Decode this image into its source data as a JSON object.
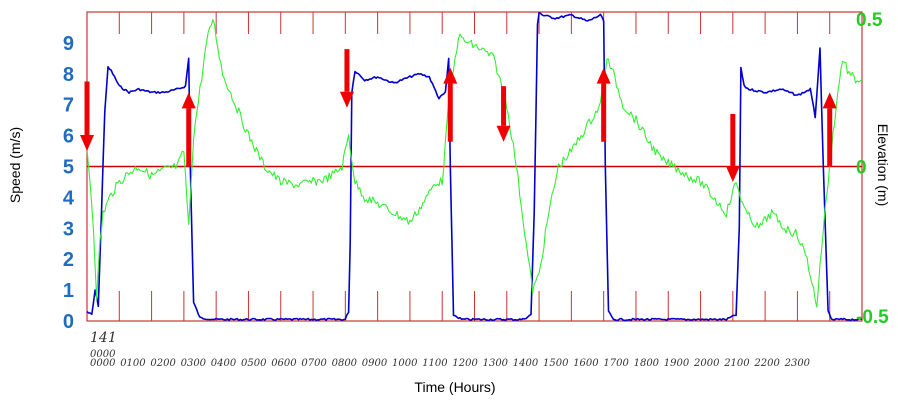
{
  "chart_data": {
    "type": "line",
    "xlabel": "Time (Hours)",
    "ylabel_left": "Speed  (m/s)",
    "ylabel_right": "Elevation  (m)",
    "x_axis": {
      "start_label": "141",
      "start_label_sub": "0000",
      "tick_labels": [
        "0000",
        "0100",
        "0200",
        "0300",
        "0400",
        "0500",
        "0600",
        "0700",
        "0800",
        "0900",
        "1000",
        "1100",
        "1200",
        "1300",
        "1400",
        "1500",
        "1600",
        "1700",
        "1800",
        "1900",
        "2000",
        "2100",
        "2200",
        "2300"
      ],
      "xlim": [
        0,
        24
      ]
    },
    "y_left": {
      "ylim": [
        0,
        10
      ],
      "tick_labels": [
        "0",
        "1",
        "2",
        "3",
        "4",
        "5",
        "6",
        "7",
        "8",
        "9"
      ],
      "color": "#1f6cc0"
    },
    "y_right": {
      "ylim": [
        -0.5,
        0.5
      ],
      "tick_labels": [
        "-0.5",
        "0",
        "0.5"
      ],
      "tick_values": [
        -0.5,
        0,
        0.5
      ],
      "color": "#22cc22"
    },
    "reference_line": {
      "axis": "right",
      "value": 0,
      "color": "#cc0000"
    },
    "frame_color": "#cc3333",
    "series": [
      {
        "axis": "left",
        "color": "#0000cc",
        "x": [
          0.0,
          0.15,
          0.25,
          0.35,
          0.45,
          0.55,
          0.65,
          0.75,
          0.85,
          1.0,
          1.3,
          1.6,
          2.0,
          2.4,
          2.8,
          3.05,
          3.15,
          3.2,
          3.3,
          3.5,
          4.0,
          5.0,
          6.0,
          7.0,
          7.8,
          8.0,
          8.1,
          8.15,
          8.2,
          8.3,
          8.6,
          9.0,
          9.5,
          10.0,
          10.3,
          10.6,
          10.9,
          11.1,
          11.2,
          11.25,
          11.35,
          11.6,
          12.0,
          12.5,
          13.0,
          13.5,
          13.75,
          13.85,
          13.95,
          14.0,
          14.1,
          14.5,
          15.0,
          15.5,
          15.9,
          16.0,
          16.05,
          16.15,
          16.3,
          17.0,
          18.0,
          19.0,
          19.8,
          20.1,
          20.2,
          20.25,
          20.35,
          20.5,
          21.0,
          21.5,
          22.0,
          22.4,
          22.55,
          22.7,
          22.8,
          22.95,
          23.05,
          23.2,
          23.5,
          24.0
        ],
        "y": [
          0.3,
          0.2,
          1.0,
          0.5,
          3.5,
          6.8,
          8.2,
          8.1,
          7.9,
          7.6,
          7.4,
          7.5,
          7.4,
          7.4,
          7.5,
          7.6,
          8.5,
          5.0,
          0.6,
          0.1,
          0.05,
          0.05,
          0.05,
          0.05,
          0.05,
          0.05,
          0.3,
          2.5,
          7.4,
          8.1,
          7.8,
          7.9,
          7.7,
          7.9,
          8.0,
          7.9,
          7.2,
          7.4,
          8.5,
          5.0,
          0.2,
          0.05,
          0.05,
          0.05,
          0.05,
          0.05,
          0.2,
          3.5,
          9.6,
          10.0,
          9.9,
          9.8,
          9.9,
          9.7,
          9.9,
          9.7,
          5.0,
          0.3,
          0.05,
          0.05,
          0.05,
          0.05,
          0.05,
          0.2,
          3.0,
          8.2,
          7.6,
          7.5,
          7.4,
          7.5,
          7.3,
          7.5,
          6.6,
          8.8,
          5.0,
          0.3,
          0.05,
          0.05,
          0.05,
          0.05
        ]
      },
      {
        "axis": "right",
        "color": "#33ee33",
        "x": [
          0.0,
          0.1,
          0.2,
          0.3,
          0.4,
          0.5,
          0.7,
          1.0,
          1.3,
          1.6,
          2.0,
          2.4,
          2.8,
          3.0,
          3.15,
          3.3,
          3.5,
          3.7,
          3.9,
          4.2,
          4.6,
          5.0,
          5.5,
          6.0,
          6.5,
          7.0,
          7.4,
          7.7,
          7.9,
          8.1,
          8.3,
          8.6,
          9.0,
          9.5,
          10.0,
          10.4,
          10.8,
          11.0,
          11.2,
          11.5,
          11.8,
          12.2,
          12.6,
          13.0,
          13.3,
          13.6,
          13.8,
          14.0,
          14.3,
          14.6,
          15.0,
          15.3,
          15.6,
          15.9,
          16.1,
          16.3,
          16.6,
          17.0,
          17.4,
          17.8,
          18.2,
          18.6,
          19.0,
          19.4,
          19.8,
          20.1,
          20.4,
          20.8,
          21.2,
          21.6,
          22.0,
          22.3,
          22.6,
          22.8,
          23.0,
          23.2,
          23.4,
          23.6,
          23.8,
          24.0
        ],
        "y": [
          0.05,
          -0.05,
          -0.2,
          -0.42,
          -0.25,
          -0.15,
          -0.1,
          -0.05,
          -0.02,
          0.0,
          -0.03,
          -0.01,
          0.0,
          0.05,
          -0.2,
          0.1,
          0.25,
          0.4,
          0.48,
          0.3,
          0.2,
          0.1,
          0.0,
          -0.05,
          -0.06,
          -0.05,
          -0.04,
          -0.02,
          0.0,
          0.1,
          -0.05,
          -0.1,
          -0.12,
          -0.15,
          -0.18,
          -0.12,
          -0.05,
          -0.05,
          0.2,
          0.42,
          0.4,
          0.38,
          0.35,
          0.2,
          0.0,
          -0.25,
          -0.4,
          -0.35,
          -0.15,
          0.0,
          0.05,
          0.1,
          0.15,
          0.2,
          0.35,
          0.3,
          0.2,
          0.15,
          0.08,
          0.02,
          0.0,
          -0.03,
          -0.05,
          -0.1,
          -0.15,
          -0.05,
          -0.15,
          -0.2,
          -0.15,
          -0.2,
          -0.22,
          -0.3,
          -0.45,
          -0.2,
          0.0,
          0.2,
          0.35,
          0.3,
          0.28,
          0.28
        ]
      }
    ],
    "arrows": [
      {
        "direction": "down",
        "x": 0.0,
        "elevation_from": 0.275,
        "elevation_to": 0.05
      },
      {
        "direction": "up",
        "x": 3.15,
        "elevation_from": 0.0,
        "elevation_to": 0.24
      },
      {
        "direction": "down",
        "x": 8.05,
        "elevation_from": 0.38,
        "elevation_to": 0.19
      },
      {
        "direction": "up",
        "x": 11.25,
        "elevation_from": 0.08,
        "elevation_to": 0.32
      },
      {
        "direction": "down",
        "x": 12.9,
        "elevation_from": 0.26,
        "elevation_to": 0.08
      },
      {
        "direction": "up",
        "x": 16.0,
        "elevation_from": 0.08,
        "elevation_to": 0.32
      },
      {
        "direction": "down",
        "x": 20.0,
        "elevation_from": 0.17,
        "elevation_to": -0.05
      },
      {
        "direction": "up",
        "x": 23.0,
        "elevation_from": 0.0,
        "elevation_to": 0.24
      }
    ]
  }
}
